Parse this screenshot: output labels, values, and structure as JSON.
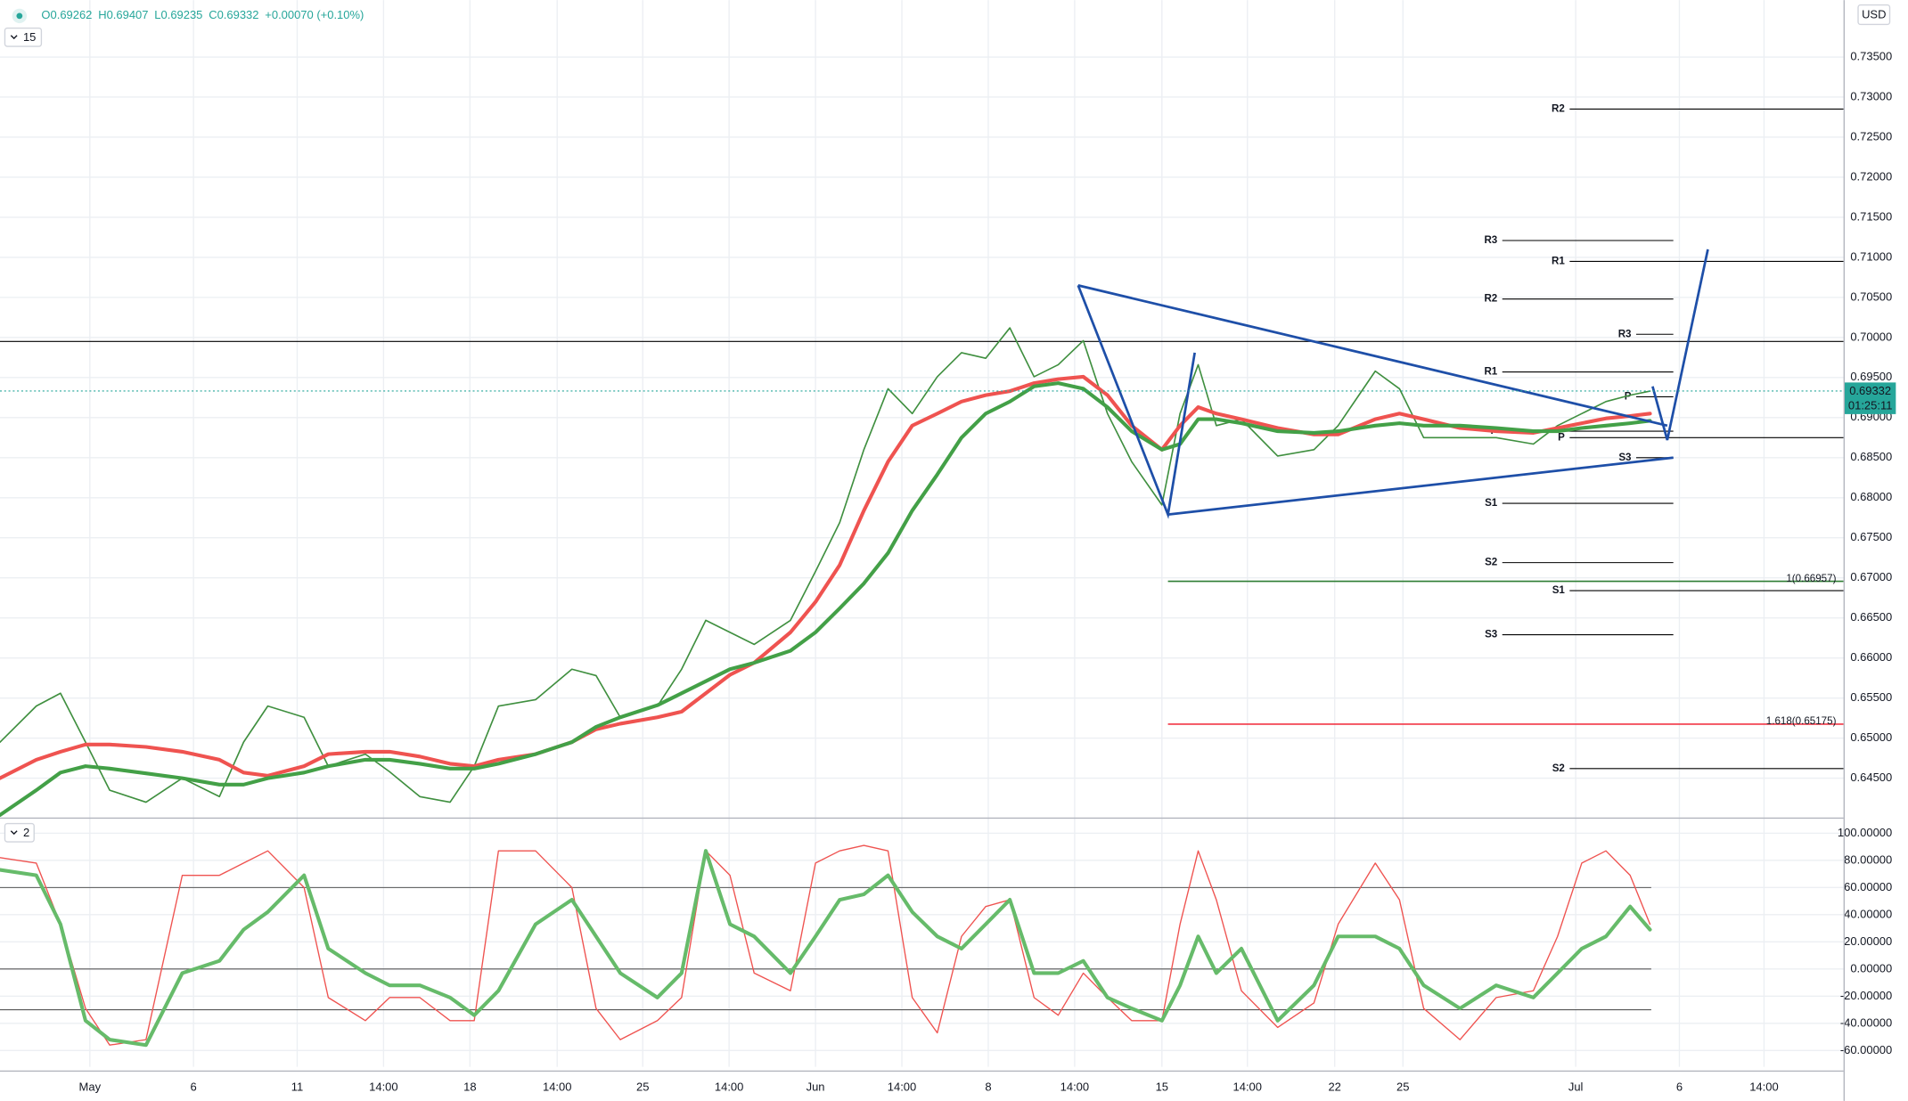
{
  "chart_data": [
    {
      "type": "line",
      "header": {
        "open": "O0.69262",
        "high": "H0.69407",
        "low": "L0.69235",
        "close": "C0.69332",
        "change": "+0.00070 (+0.10%)"
      },
      "interval": "15",
      "currency": "USD",
      "x": [
        0,
        0.42,
        0.7,
        0.99,
        1.27,
        1.69,
        2.11,
        2.54,
        2.82,
        3.1,
        3.52,
        3.8,
        4.23,
        4.51,
        4.86,
        5.21,
        5.49,
        5.77,
        6.2,
        6.62,
        6.9,
        7.18,
        7.61,
        7.89,
        8.17,
        8.45,
        8.73,
        9.15,
        9.44,
        9.72,
        10,
        10.28,
        10.56,
        10.85,
        11.13,
        11.41,
        11.69,
        11.97,
        12.25,
        12.54,
        12.82,
        13.1,
        13.45,
        13.66,
        13.87,
        14.08,
        14.37,
        14.79,
        15.21,
        15.49,
        15.92,
        16.2,
        16.48,
        16.9,
        17.32,
        17.75,
        18.03,
        18.31,
        18.59,
        18.87,
        19.1
      ],
      "series": [
        {
          "color": "#3f8f3f",
          "values": [
            0.6495,
            0.654,
            0.6556,
            0.6495,
            0.6435,
            0.642,
            0.645,
            0.6427,
            0.6495,
            0.654,
            0.6526,
            0.6465,
            0.648,
            0.6458,
            0.6427,
            0.642,
            0.6465,
            0.654,
            0.6548,
            0.6586,
            0.6578,
            0.6526,
            0.654,
            0.6586,
            0.6647,
            0.6632,
            0.6617,
            0.6647,
            0.6708,
            0.6769,
            0.686,
            0.6936,
            0.6905,
            0.6951,
            0.6981,
            0.6974,
            0.7012,
            0.6951,
            0.6966,
            0.6996,
            0.6905,
            0.6845,
            0.6791,
            0.6905,
            0.6966,
            0.689,
            0.6898,
            0.6852,
            0.686,
            0.689,
            0.6958,
            0.6936,
            0.6875,
            0.6875,
            0.6875,
            0.6867,
            0.689,
            0.6905,
            0.692,
            0.6928,
            0.6933
          ]
        },
        {
          "color": "#ef5350",
          "values": [
            0.645,
            0.6473,
            0.6483,
            0.6492,
            0.6492,
            0.6489,
            0.6483,
            0.6473,
            0.6457,
            0.6453,
            0.6465,
            0.648,
            0.6483,
            0.6483,
            0.6477,
            0.6468,
            0.6465,
            0.6473,
            0.648,
            0.6495,
            0.6511,
            0.6518,
            0.6526,
            0.6533,
            0.6556,
            0.6579,
            0.6594,
            0.6632,
            0.667,
            0.6716,
            0.6784,
            0.6845,
            0.689,
            0.6905,
            0.692,
            0.6928,
            0.6933,
            0.6943,
            0.6948,
            0.6951,
            0.6928,
            0.689,
            0.686,
            0.689,
            0.6913,
            0.6905,
            0.6898,
            0.6887,
            0.6879,
            0.6879,
            0.6898,
            0.6905,
            0.6898,
            0.6887,
            0.6883,
            0.6881,
            0.6887,
            0.6893,
            0.6899,
            0.6902,
            0.6905
          ]
        },
        {
          "color": "#43a047",
          "values": [
            0.6404,
            0.6435,
            0.6457,
            0.6465,
            0.6462,
            0.6456,
            0.645,
            0.6442,
            0.6442,
            0.645,
            0.6457,
            0.6465,
            0.6473,
            0.6473,
            0.6468,
            0.6462,
            0.6462,
            0.6468,
            0.648,
            0.6495,
            0.6514,
            0.6526,
            0.6541,
            0.6556,
            0.6571,
            0.6586,
            0.6594,
            0.6609,
            0.6632,
            0.6662,
            0.6693,
            0.6731,
            0.6784,
            0.6829,
            0.6875,
            0.6905,
            0.692,
            0.6939,
            0.6943,
            0.6936,
            0.6913,
            0.6883,
            0.686,
            0.6867,
            0.6898,
            0.6898,
            0.6893,
            0.6883,
            0.6881,
            0.6883,
            0.689,
            0.6893,
            0.689,
            0.689,
            0.6887,
            0.6883,
            0.6883,
            0.6887,
            0.689,
            0.6893,
            0.6896
          ]
        }
      ],
      "xlim": [
        0,
        21.34
      ],
      "xticks": [
        {
          "value": 1.04,
          "label": "May"
        },
        {
          "value": 2.24,
          "label": "6"
        },
        {
          "value": 3.44,
          "label": "11"
        },
        {
          "value": 4.44,
          "label": "14:00"
        },
        {
          "value": 5.44,
          "label": "18"
        },
        {
          "value": 6.45,
          "label": "14:00"
        },
        {
          "value": 7.44,
          "label": "25"
        },
        {
          "value": 8.44,
          "label": "14:00"
        },
        {
          "value": 9.44,
          "label": "Jun"
        },
        {
          "value": 10.44,
          "label": "14:00"
        },
        {
          "value": 11.44,
          "label": "8"
        },
        {
          "value": 12.44,
          "label": "14:00"
        },
        {
          "value": 13.45,
          "label": "15"
        },
        {
          "value": 14.44,
          "label": "14:00"
        },
        {
          "value": 15.45,
          "label": "22"
        },
        {
          "value": 16.24,
          "label": "25"
        },
        {
          "value": 18.24,
          "label": "Jul"
        },
        {
          "value": 19.44,
          "label": "6"
        },
        {
          "value": 20.42,
          "label": "14:00"
        }
      ],
      "ylim": [
        0.6404,
        0.7421
      ],
      "yticks": [
        {
          "value": 0.645,
          "label": "0.64500"
        },
        {
          "value": 0.65,
          "label": "0.65000"
        },
        {
          "value": 0.655,
          "label": "0.65500"
        },
        {
          "value": 0.66,
          "label": "0.66000"
        },
        {
          "value": 0.665,
          "label": "0.66500"
        },
        {
          "value": 0.67,
          "label": "0.67000"
        },
        {
          "value": 0.675,
          "label": "0.67500"
        },
        {
          "value": 0.68,
          "label": "0.68000"
        },
        {
          "value": 0.685,
          "label": "0.68500"
        },
        {
          "value": 0.69,
          "label": "0.69000"
        },
        {
          "value": 0.695,
          "label": "0.69500"
        },
        {
          "value": 0.7,
          "label": "0.70000"
        },
        {
          "value": 0.705,
          "label": "0.70500"
        },
        {
          "value": 0.71,
          "label": "0.71000"
        },
        {
          "value": 0.715,
          "label": "0.71500"
        },
        {
          "value": 0.72,
          "label": "0.72000"
        },
        {
          "value": 0.725,
          "label": "0.72500"
        },
        {
          "value": 0.73,
          "label": "0.73000"
        },
        {
          "value": 0.735,
          "label": "0.73500"
        }
      ],
      "grid": true,
      "hlines": [
        0.6995
      ],
      "last_price": {
        "value": 0.69332,
        "label": "0.69332"
      },
      "countdown": "01:25:11",
      "levels": [
        {
          "label": "R3",
          "value": 0.7121,
          "x0": 17.39,
          "x1": 19.37
        },
        {
          "label": "R2",
          "value": 0.7048,
          "x0": 17.39,
          "x1": 19.37
        },
        {
          "label": "R1",
          "value": 0.6957,
          "x0": 17.39,
          "x1": 19.37
        },
        {
          "label": "P",
          "value": 0.6883,
          "x0": 17.39,
          "x1": 19.37
        },
        {
          "label": "S1",
          "value": 0.6793,
          "x0": 17.39,
          "x1": 19.37
        },
        {
          "label": "S2",
          "value": 0.6719,
          "x0": 17.39,
          "x1": 19.37
        },
        {
          "label": "S3",
          "value": 0.6629,
          "x0": 17.39,
          "x1": 19.37
        },
        {
          "label": "R2",
          "value": 0.7285,
          "x0": 18.17,
          "x1": 21.34
        },
        {
          "label": "R1",
          "value": 0.7095,
          "x0": 18.17,
          "x1": 21.34
        },
        {
          "label": "P",
          "value": 0.6875,
          "x0": 18.17,
          "x1": 21.34
        },
        {
          "label": "S1",
          "value": 0.6684,
          "x0": 18.17,
          "x1": 21.34
        },
        {
          "label": "S2",
          "value": 0.6462,
          "x0": 18.17,
          "x1": 21.34
        },
        {
          "label": "R3",
          "value": 0.7004,
          "x0": 18.94,
          "x1": 19.37
        },
        {
          "label": "P",
          "value": 0.6926,
          "x0": 18.94,
          "x1": 19.37
        },
        {
          "label": "S3",
          "value": 0.685,
          "x0": 18.94,
          "x1": 19.37
        }
      ],
      "fib": [
        {
          "label": "1(0.66957)",
          "value": 0.66957,
          "x0": 13.52,
          "x1": 21.34,
          "color": "#2e7d32"
        },
        {
          "label": "1.618(0.65175)",
          "value": 0.65175,
          "x0": 13.52,
          "x1": 21.34,
          "color": "#f23645"
        }
      ],
      "trend_color": "#1e4fa8",
      "trend_lines": [
        {
          "x": [
            12.48,
            13.52,
            13.83
          ],
          "y": [
            0.7065,
            0.6779,
            0.6981
          ]
        },
        {
          "x": [
            12.48,
            19.3
          ],
          "y": [
            0.7065,
            0.689
          ]
        },
        {
          "x": [
            13.52,
            19.37
          ],
          "y": [
            0.6779,
            0.685
          ]
        },
        {
          "x": [
            19.13,
            19.3,
            19.77
          ],
          "y": [
            0.6939,
            0.6872,
            0.711
          ]
        }
      ]
    },
    {
      "type": "line",
      "panel": "2",
      "x": [
        0,
        0.42,
        0.7,
        0.99,
        1.27,
        1.69,
        2.11,
        2.54,
        2.82,
        3.1,
        3.52,
        3.8,
        4.23,
        4.51,
        4.86,
        5.21,
        5.49,
        5.77,
        6.2,
        6.62,
        6.9,
        7.18,
        7.61,
        7.89,
        8.17,
        8.45,
        8.73,
        9.15,
        9.44,
        9.72,
        10,
        10.28,
        10.56,
        10.85,
        11.13,
        11.41,
        11.69,
        11.97,
        12.25,
        12.54,
        12.82,
        13.1,
        13.45,
        13.66,
        13.87,
        14.08,
        14.37,
        14.79,
        15.21,
        15.49,
        15.92,
        16.2,
        16.48,
        16.9,
        17.32,
        17.75,
        18.03,
        18.31,
        18.59,
        18.87,
        19.1
      ],
      "series": [
        {
          "color": "#ef5350",
          "values": [
            82,
            78,
            33,
            -29,
            -56,
            -52,
            69,
            69,
            78,
            87,
            60,
            -21,
            -38,
            -21,
            -21,
            -38,
            -38,
            87,
            87,
            60,
            -29,
            -52,
            -38,
            -21,
            87,
            69,
            -3,
            -16,
            78,
            87,
            91,
            87,
            -21,
            -47,
            24,
            46,
            51,
            -21,
            -34,
            -3,
            -21,
            -38,
            -38,
            33,
            87,
            51,
            -16,
            -43,
            -25,
            33,
            78,
            51,
            -29,
            -52,
            -21,
            -16,
            24,
            78,
            87,
            69,
            33
          ]
        },
        {
          "color": "#66bb6a",
          "values": [
            73,
            69,
            33,
            -38,
            -52,
            -56,
            -3,
            6,
            29,
            42,
            69,
            15,
            -3,
            -12,
            -12,
            -21,
            -34,
            -16,
            33,
            51,
            24,
            -3,
            -21,
            -3,
            87,
            33,
            24,
            -3,
            24,
            51,
            55,
            69,
            42,
            24,
            15,
            33,
            51,
            -3,
            -3,
            6,
            -21,
            -29,
            -38,
            -12,
            24,
            -3,
            15,
            -38,
            -12,
            24,
            24,
            15,
            -12,
            -29,
            -12,
            -21,
            -3,
            15,
            24,
            46,
            29
          ]
        }
      ],
      "xlim": [
        0,
        21.34
      ],
      "ylim": [
        -72,
        108
      ],
      "yticks": [
        {
          "value": -60,
          "label": "-60.00000"
        },
        {
          "value": -40,
          "label": "-40.00000"
        },
        {
          "value": -20,
          "label": "-20.00000"
        },
        {
          "value": 0,
          "label": "0.00000"
        },
        {
          "value": 20,
          "label": "20.00000"
        },
        {
          "value": 40,
          "label": "40.00000"
        },
        {
          "value": 60,
          "label": "60.00000"
        },
        {
          "value": 80,
          "label": "80.00000"
        },
        {
          "value": 100,
          "label": "100.00000"
        }
      ],
      "grid": true,
      "hlines": [
        60,
        0,
        -30
      ]
    }
  ]
}
